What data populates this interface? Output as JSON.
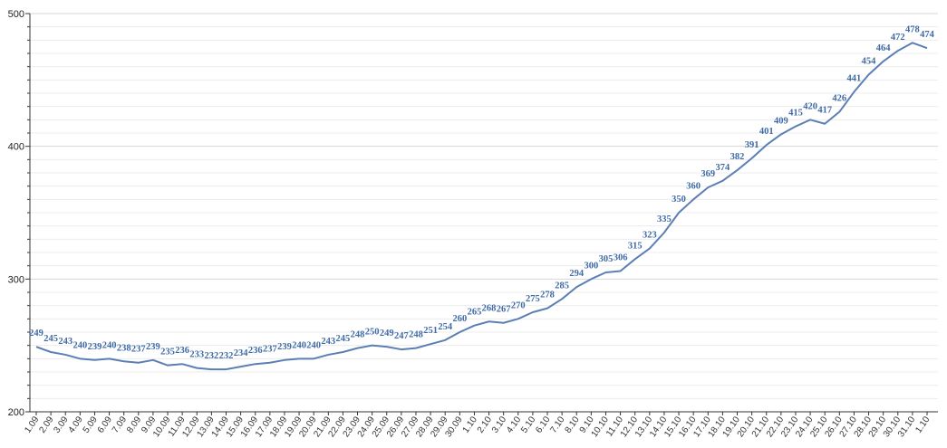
{
  "chart_data": {
    "type": "line",
    "title": "",
    "xlabel": "",
    "ylabel": "",
    "ylim": [
      200,
      500
    ],
    "yticks": [
      "200",
      "300",
      "400",
      "500"
    ],
    "grid": true,
    "legend": "none",
    "line_color": "#5b7fb5",
    "label_color": "#3e6aa6",
    "categories": [
      "1.09",
      "2.09",
      "3.09",
      "4.09",
      "5.09",
      "6.09",
      "7.09",
      "8.09",
      "9.09",
      "10.09",
      "11.09",
      "12.09",
      "13.09",
      "14.09",
      "15.09",
      "16.09",
      "17.09",
      "18.09",
      "19.09",
      "20.09",
      "21.09",
      "22.09",
      "23.09",
      "24.09",
      "25.09",
      "26.09",
      "27.09",
      "28.09",
      "29.09",
      "30.09",
      "1.10",
      "2.10",
      "3.10",
      "4.10",
      "5.10",
      "6.10",
      "7.10",
      "8.10",
      "9.10",
      "10.10",
      "11.10",
      "12.10",
      "13.10",
      "14.10",
      "15.10",
      "16.10",
      "17.10",
      "18.10",
      "19.10",
      "20.10",
      "21.10",
      "22.10",
      "23.10",
      "24.10",
      "25.10",
      "26.10",
      "27.10",
      "28.10",
      "29.10",
      "30.10",
      "31.10",
      "1.10"
    ],
    "series": [
      {
        "values": [
          249,
          245,
          243,
          240,
          239,
          240,
          238,
          237,
          239,
          235,
          236,
          233,
          232,
          232,
          234,
          236,
          237,
          239,
          240,
          240,
          243,
          245,
          248,
          250,
          249,
          247,
          248,
          251,
          254,
          260,
          265,
          268,
          267,
          270,
          275,
          278,
          285,
          294,
          300,
          305,
          306,
          315,
          323,
          335,
          350,
          360,
          369,
          374,
          382,
          391,
          401,
          409,
          415,
          420,
          417,
          426,
          441,
          454,
          464,
          472,
          478,
          474
        ]
      }
    ]
  }
}
